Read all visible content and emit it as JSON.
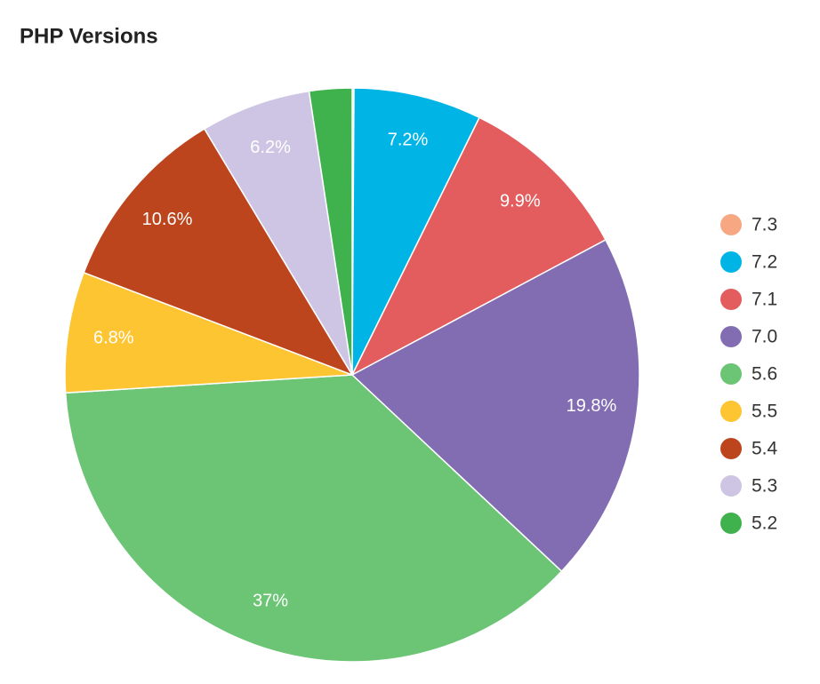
{
  "chart_data": {
    "type": "pie",
    "title": "PHP Versions",
    "categories": [
      "7.3",
      "7.2",
      "7.1",
      "7.0",
      "5.6",
      "5.5",
      "5.4",
      "5.3",
      "5.2"
    ],
    "values": [
      0.1,
      7.2,
      9.9,
      19.8,
      37,
      6.8,
      10.6,
      6.2,
      2.4
    ],
    "value_labels": [
      null,
      "7.2%",
      "9.9%",
      "19.8%",
      "37%",
      "6.8%",
      "10.6%",
      "6.2%",
      null
    ],
    "colors": [
      "#f7a883",
      "#00b5e6",
      "#e35d5f",
      "#826db3",
      "#6cc475",
      "#fec533",
      "#bd451d",
      "#cdc5e3",
      "#3fb24e"
    ],
    "legend": "right"
  }
}
